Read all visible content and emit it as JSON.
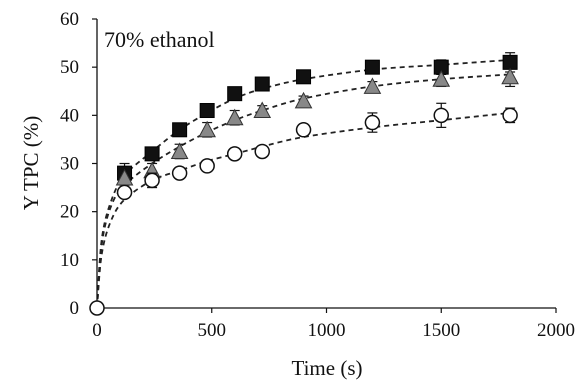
{
  "chart_data": {
    "type": "scatter",
    "annotation": "70% ethanol",
    "xlabel": "Time (s)",
    "ylabel": "Y TPC (%)",
    "xlim": [
      0,
      2000
    ],
    "ylim": [
      0,
      60
    ],
    "xticks": [
      0,
      500,
      1000,
      1500,
      2000
    ],
    "yticks": [
      0,
      10,
      20,
      30,
      40,
      50,
      60
    ],
    "grid": false,
    "legend": "none",
    "fit_lines": "dashed",
    "series": [
      {
        "marker": "square",
        "fill": "#111111",
        "x": [
          120,
          240,
          360,
          480,
          600,
          720,
          900,
          1200,
          1500,
          1800
        ],
        "y": [
          28,
          32,
          37,
          41,
          44.5,
          46.5,
          48,
          50,
          50,
          51
        ],
        "err": [
          2,
          1,
          1,
          1,
          1,
          1,
          1,
          1,
          1.5,
          2
        ]
      },
      {
        "marker": "triangle",
        "fill": "#888888",
        "x": [
          120,
          240,
          360,
          480,
          600,
          720,
          900,
          1200,
          1500,
          1800
        ],
        "y": [
          27,
          28.5,
          32.5,
          37,
          39.5,
          41,
          43,
          46,
          47.5,
          48
        ],
        "err": [
          1.5,
          1.5,
          1.5,
          1.5,
          1.5,
          1,
          1,
          1,
          1.5,
          2
        ]
      },
      {
        "marker": "circle",
        "fill": "#ffffff",
        "x": [
          0,
          120,
          240,
          360,
          480,
          600,
          720,
          900,
          1200,
          1500,
          1800
        ],
        "y": [
          0,
          24,
          26.5,
          28,
          29.5,
          32,
          32.5,
          37,
          38.5,
          40,
          40
        ],
        "err": [
          0,
          1,
          1.5,
          1,
          1,
          1,
          1,
          0.5,
          2,
          2.5,
          1.5
        ]
      }
    ],
    "fits": [
      {
        "x": [
          0,
          20,
          60,
          120,
          240,
          360,
          480,
          600,
          720,
          900,
          1200,
          1500,
          1800
        ],
        "y": [
          0,
          14,
          22,
          27.5,
          32.5,
          37,
          40.5,
          43.5,
          45.5,
          47.5,
          49.5,
          50.5,
          51.5
        ]
      },
      {
        "x": [
          0,
          20,
          60,
          120,
          240,
          360,
          480,
          600,
          720,
          900,
          1200,
          1500,
          1800
        ],
        "y": [
          0,
          13,
          21,
          25.5,
          30,
          33.5,
          36.5,
          39,
          41,
          43.5,
          46,
          47.5,
          48.5
        ]
      },
      {
        "x": [
          0,
          20,
          60,
          120,
          240,
          360,
          480,
          600,
          720,
          900,
          1200,
          1500,
          1800
        ],
        "y": [
          0,
          11,
          18,
          22.5,
          26.5,
          28.5,
          30.5,
          32,
          33.5,
          35.5,
          37.5,
          39,
          40.5
        ]
      }
    ]
  }
}
